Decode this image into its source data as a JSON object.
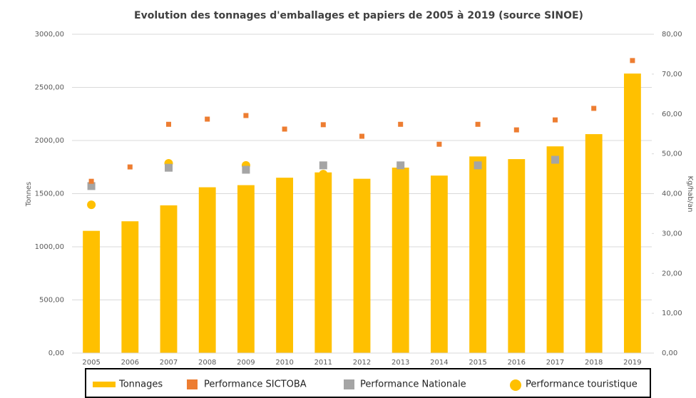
{
  "chart_data": {
    "type": "bar",
    "title": "Evolution des tonnages d'emballages et papiers de 2005 à 2019 (source SINOE)",
    "y_label": "Tonnes",
    "y2_label": "Kg/hab/an",
    "categories": [
      "2005",
      "2006",
      "2007",
      "2008",
      "2009",
      "2010",
      "2011",
      "2012",
      "2013",
      "2014",
      "2015",
      "2016",
      "2017",
      "2018",
      "2019"
    ],
    "series": [
      {
        "name": "Tonnages",
        "type": "bar",
        "color": "#FFC000",
        "values": [
          1150,
          1240,
          1390,
          1560,
          1580,
          1650,
          1700,
          1640,
          1745,
          1670,
          1850,
          1825,
          1945,
          2060,
          2630
        ]
      },
      {
        "name": "Performance SICTOBA",
        "type": "scatter",
        "marker": "square",
        "axis": "y2",
        "color": "#ED7D31",
        "values": [
          43.1,
          46.7,
          57.4,
          58.7,
          59.6,
          56.2,
          57.3,
          54.4,
          57.4,
          52.4,
          57.4,
          56.0,
          58.5,
          61.4,
          73.4
        ]
      },
      {
        "name": "Performance Nationale",
        "type": "scatter",
        "marker": "square",
        "axis": "y2",
        "color": "#A5A5A5",
        "values": [
          41.9,
          null,
          46.5,
          null,
          46.0,
          null,
          47.1,
          null,
          47.1,
          null,
          47.1,
          null,
          48.5,
          null,
          null
        ]
      },
      {
        "name": "Performance touristique",
        "type": "scatter",
        "marker": "circle",
        "axis": "y2",
        "color": "#FFC000",
        "values": [
          37.2,
          null,
          47.6,
          null,
          47.1,
          null,
          44.9,
          null,
          null,
          null,
          null,
          null,
          null,
          null,
          null
        ]
      }
    ],
    "ylim": [
      0,
      3000
    ],
    "yticks": [
      {
        "value": 0,
        "label": "0,00"
      },
      {
        "value": 500,
        "label": "500,00"
      },
      {
        "value": 1000,
        "label": "1000,00"
      },
      {
        "value": 1500,
        "label": "1500,00"
      },
      {
        "value": 2000,
        "label": "2000,00"
      },
      {
        "value": 2500,
        "label": "2500,00"
      },
      {
        "value": 3000,
        "label": "3000,00"
      }
    ],
    "y2lim": [
      0,
      80
    ],
    "y2ticks": [
      {
        "value": 0,
        "label": "0,00"
      },
      {
        "value": 10,
        "label": "10,00"
      },
      {
        "value": 20,
        "label": "20,00"
      },
      {
        "value": 30,
        "label": "30,00"
      },
      {
        "value": 40,
        "label": "40,00"
      },
      {
        "value": 50,
        "label": "50,00"
      },
      {
        "value": 60,
        "label": "60,00"
      },
      {
        "value": 70,
        "label": "70,00"
      },
      {
        "value": 80,
        "label": "80,00"
      }
    ],
    "grid": true,
    "legend": "bottom"
  }
}
